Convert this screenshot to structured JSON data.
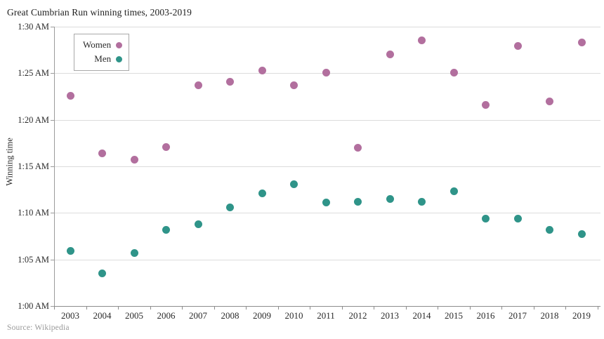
{
  "header": {
    "title": "Great Cumbrian Run winning times, 2003-2019"
  },
  "footer": {
    "source": "Source: Wikipedia"
  },
  "legend": {
    "items": [
      {
        "label": "Women",
        "color": "#b26f9e"
      },
      {
        "label": "Men",
        "color": "#2f9489"
      }
    ]
  },
  "y_axis": {
    "title": "Winning time",
    "ticks": [
      {
        "label": "1:30 AM",
        "minutes": 30
      },
      {
        "label": "1:25 AM",
        "minutes": 25
      },
      {
        "label": "1:20 AM",
        "minutes": 20
      },
      {
        "label": "1:15 AM",
        "minutes": 15
      },
      {
        "label": "1:10 AM",
        "minutes": 10
      },
      {
        "label": "1:05 AM",
        "minutes": 5
      },
      {
        "label": "1:00 AM",
        "minutes": 0
      }
    ]
  },
  "x_axis": {
    "labels": [
      "2003",
      "2004",
      "2005",
      "2006",
      "2007",
      "2008",
      "2009",
      "2010",
      "2011",
      "2012",
      "2013",
      "2014",
      "2015",
      "2016",
      "2017",
      "2018",
      "2019"
    ]
  },
  "chart_data": {
    "type": "scatter",
    "title": "Great Cumbrian Run winning times, 2003-2019",
    "xlabel": "",
    "ylabel": "Winning time",
    "x": [
      2003,
      2004,
      2005,
      2006,
      2007,
      2008,
      2009,
      2010,
      2011,
      2012,
      2013,
      2014,
      2015,
      2016,
      2017,
      2018,
      2019
    ],
    "y_unit": "minutes after 1:00 AM (clock-formatted winning time)",
    "ylim_minutes_after_1am": [
      0,
      30
    ],
    "y_tick_interval_minutes": 5,
    "grid": "horizontal",
    "legend_position": "inside top-left",
    "series": [
      {
        "name": "Women",
        "color": "#b26f9e",
        "y_minutes_after_1am": [
          22.6,
          16.4,
          15.7,
          17.1,
          23.7,
          24.1,
          25.3,
          23.7,
          25.1,
          17.0,
          27.0,
          28.5,
          25.1,
          21.6,
          27.9,
          22.0,
          28.3
        ],
        "approx_times": [
          "1:22:36",
          "1:16:24",
          "1:15:42",
          "1:17:06",
          "1:23:42",
          "1:24:06",
          "1:25:18",
          "1:23:42",
          "1:25:06",
          "1:17:00",
          "1:27:00",
          "1:28:30",
          "1:25:06",
          "1:21:36",
          "1:27:54",
          "1:22:00",
          "1:28:18"
        ]
      },
      {
        "name": "Men",
        "color": "#2f9489",
        "y_minutes_after_1am": [
          5.9,
          3.5,
          5.7,
          8.2,
          8.8,
          10.6,
          12.1,
          13.1,
          11.1,
          11.2,
          11.5,
          11.2,
          12.3,
          9.4,
          9.4,
          8.2,
          7.7
        ],
        "approx_times": [
          "1:05:54",
          "1:03:30",
          "1:05:42",
          "1:08:12",
          "1:08:48",
          "1:10:36",
          "1:12:06",
          "1:13:06",
          "1:11:06",
          "1:11:12",
          "1:11:30",
          "1:11:12",
          "1:12:18",
          "1:09:24",
          "1:09:24",
          "1:08:12",
          "1:07:42"
        ]
      }
    ]
  }
}
